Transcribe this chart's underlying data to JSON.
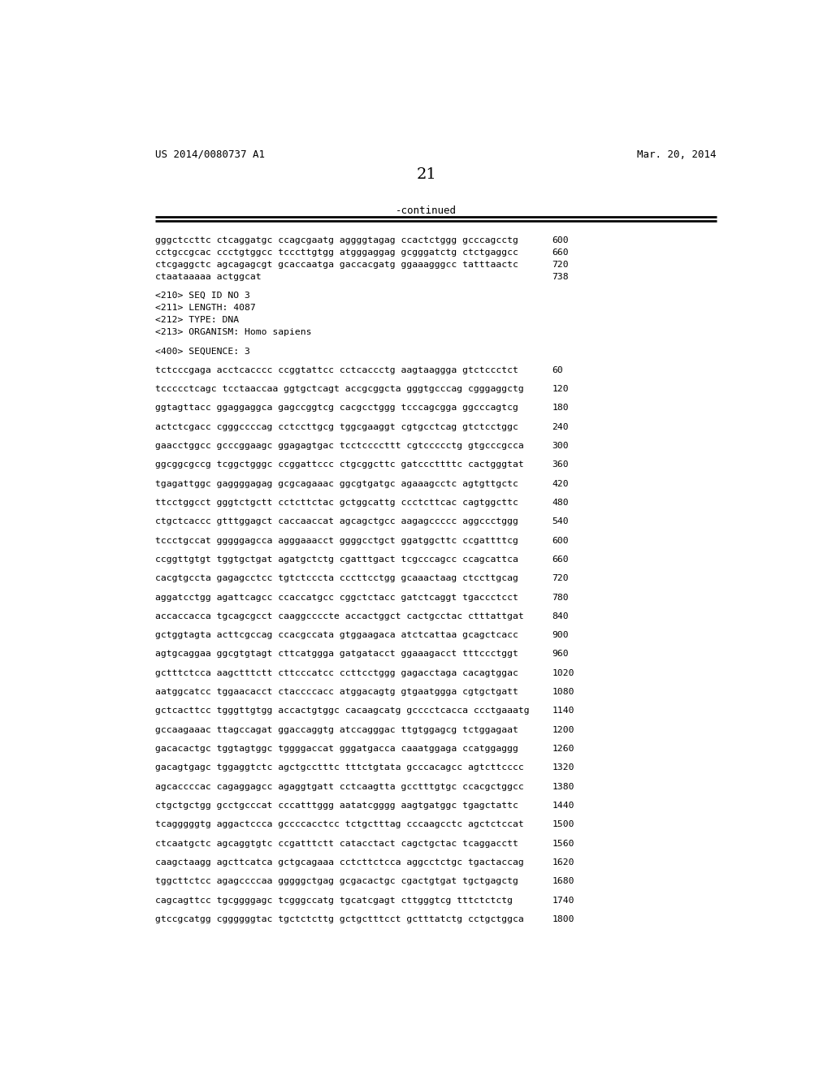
{
  "header_left": "US 2014/0080737 A1",
  "header_right": "Mar. 20, 2014",
  "page_number": "21",
  "continued_label": "-continued",
  "background_color": "#ffffff",
  "text_color": "#000000",
  "lines": [
    {
      "text": "gggctccttc ctcaggatgc ccagcgaatg aggggtagag ccactctggg gcccagcctg",
      "num": "600"
    },
    {
      "text": "cctgccgcac ccctgtggcc tcccttgtgg atgggaggag gcgggatctg ctctgaggcc",
      "num": "660"
    },
    {
      "text": "ctcgaggctc agcagagcgt gcaccaatga gaccacgatg ggaaagggcc tatttaactc",
      "num": "720"
    },
    {
      "text": "ctaataaaaa actggcat",
      "num": "738"
    },
    {
      "text": "",
      "num": ""
    },
    {
      "text": "<210> SEQ ID NO 3",
      "num": ""
    },
    {
      "text": "<211> LENGTH: 4087",
      "num": ""
    },
    {
      "text": "<212> TYPE: DNA",
      "num": ""
    },
    {
      "text": "<213> ORGANISM: Homo sapiens",
      "num": ""
    },
    {
      "text": "",
      "num": ""
    },
    {
      "text": "<400> SEQUENCE: 3",
      "num": ""
    },
    {
      "text": "",
      "num": ""
    },
    {
      "text": "tctcccgaga acctcacccc ccggtattcc cctcaccctg aagtaaggga gtctccctct",
      "num": "60"
    },
    {
      "text": "",
      "num": ""
    },
    {
      "text": "tccccctcagc tcctaaccaa ggtgctcagt accgcggcta gggtgcccag cgggaggctg",
      "num": "120"
    },
    {
      "text": "",
      "num": ""
    },
    {
      "text": "ggtagttacc ggaggaggca gagccggtcg cacgcctggg tcccagcgga ggcccagtcg",
      "num": "180"
    },
    {
      "text": "",
      "num": ""
    },
    {
      "text": "actctcgacc cgggccccag cctccttgcg tggcgaaggt cgtgcctcag gtctcctggc",
      "num": "240"
    },
    {
      "text": "",
      "num": ""
    },
    {
      "text": "gaacctggcc gcccggaagc ggagagtgac tcctccccttt cgtccccctg gtgcccgcca",
      "num": "300"
    },
    {
      "text": "",
      "num": ""
    },
    {
      "text": "ggcggcgccg tcggctgggc ccggattccc ctgcggcttc gatcccttttc cactgggtat",
      "num": "360"
    },
    {
      "text": "",
      "num": ""
    },
    {
      "text": "tgagattggc gaggggagag gcgcagaaac ggcgtgatgc agaaagcctc agtgttgctc",
      "num": "420"
    },
    {
      "text": "",
      "num": ""
    },
    {
      "text": "ttcctggcct gggtctgctt cctcttctac gctggcattg ccctcttcac cagtggcttc",
      "num": "480"
    },
    {
      "text": "",
      "num": ""
    },
    {
      "text": "ctgctcaccc gtttggagct caccaaccat agcagctgcc aagagccccc aggccctggg",
      "num": "540"
    },
    {
      "text": "",
      "num": ""
    },
    {
      "text": "tccctgccat gggggagcca agggaaacct ggggcctgct ggatggcttc ccgattttcg",
      "num": "600"
    },
    {
      "text": "",
      "num": ""
    },
    {
      "text": "ccggttgtgt tggtgctgat agatgctctg cgatttgact tcgcccagcc ccagcattca",
      "num": "660"
    },
    {
      "text": "",
      "num": ""
    },
    {
      "text": "cacgtgccta gagagcctcc tgtctcccta cccttcctgg gcaaactaag ctccttgcag",
      "num": "720"
    },
    {
      "text": "",
      "num": ""
    },
    {
      "text": "aggatcctgg agattcagcc ccaccatgcc cggctctacc gatctcaggt tgaccctcct",
      "num": "780"
    },
    {
      "text": "",
      "num": ""
    },
    {
      "text": "accaccacca tgcagcgcct caaggccccte accactggct cactgcctac ctttattgat",
      "num": "840"
    },
    {
      "text": "",
      "num": ""
    },
    {
      "text": "gctggtagta acttcgccag ccacgccata gtggaagaca atctcattaa gcagctcacc",
      "num": "900"
    },
    {
      "text": "",
      "num": ""
    },
    {
      "text": "agtgcaggaa ggcgtgtagt cttcatggga gatgatacct ggaaagacct tttccctggt",
      "num": "960"
    },
    {
      "text": "",
      "num": ""
    },
    {
      "text": "gctttctcca aagctttctt cttcccatcc ccttcctggg gagacctaga cacagtggac",
      "num": "1020"
    },
    {
      "text": "",
      "num": ""
    },
    {
      "text": "aatggcatcc tggaacacct ctaccccacc atggacagtg gtgaatggga cgtgctgatt",
      "num": "1080"
    },
    {
      "text": "",
      "num": ""
    },
    {
      "text": "gctcacttcc tgggttgtgg accactgtggc cacaagcatg gcccctcacca ccctgaaatg",
      "num": "1140"
    },
    {
      "text": "",
      "num": ""
    },
    {
      "text": "gccaagaaac ttagccagat ggaccaggtg atccagggac ttgtggagcg tctggagaat",
      "num": "1200"
    },
    {
      "text": "",
      "num": ""
    },
    {
      "text": "gacacactgc tggtagtggc tggggaccat gggatgacca caaatggaga ccatggaggg",
      "num": "1260"
    },
    {
      "text": "",
      "num": ""
    },
    {
      "text": "gacagtgagc tggaggtctc agctgcctttc tttctgtata gcccacagcc agtcttcccc",
      "num": "1320"
    },
    {
      "text": "",
      "num": ""
    },
    {
      "text": "agcaccccac cagaggagcc agaggtgatt cctcaagtta gcctttgtgc ccacgctggcc",
      "num": "1380"
    },
    {
      "text": "",
      "num": ""
    },
    {
      "text": "ctgctgctgg gcctgcccat cccatttggg aatatcgggg aagtgatggc tgagctattc",
      "num": "1440"
    },
    {
      "text": "",
      "num": ""
    },
    {
      "text": "tcagggggtg aggactccca gccccacctcc tctgctttag cccaagcctc agctctccat",
      "num": "1500"
    },
    {
      "text": "",
      "num": ""
    },
    {
      "text": "ctcaatgctc agcaggtgtc ccgatttctt catacctact cagctgctac tcaggacctt",
      "num": "1560"
    },
    {
      "text": "",
      "num": ""
    },
    {
      "text": "caagctaagg agcttcatca gctgcagaaa cctcttctcca aggcctctgc tgactaccag",
      "num": "1620"
    },
    {
      "text": "",
      "num": ""
    },
    {
      "text": "tggcttctcc agagccccaa gggggctgag gcgacactgc cgactgtgat tgctgagctg",
      "num": "1680"
    },
    {
      "text": "",
      "num": ""
    },
    {
      "text": "cagcagttcc tgcggggagc tcgggccatg tgcatcgagt cttgggtcg tttctctctg",
      "num": "1740"
    },
    {
      "text": "",
      "num": ""
    },
    {
      "text": "gtccgcatgg cggggggtac tgctctcttg gctgctttcct gctttatctg cctgctggca",
      "num": "1800"
    }
  ]
}
